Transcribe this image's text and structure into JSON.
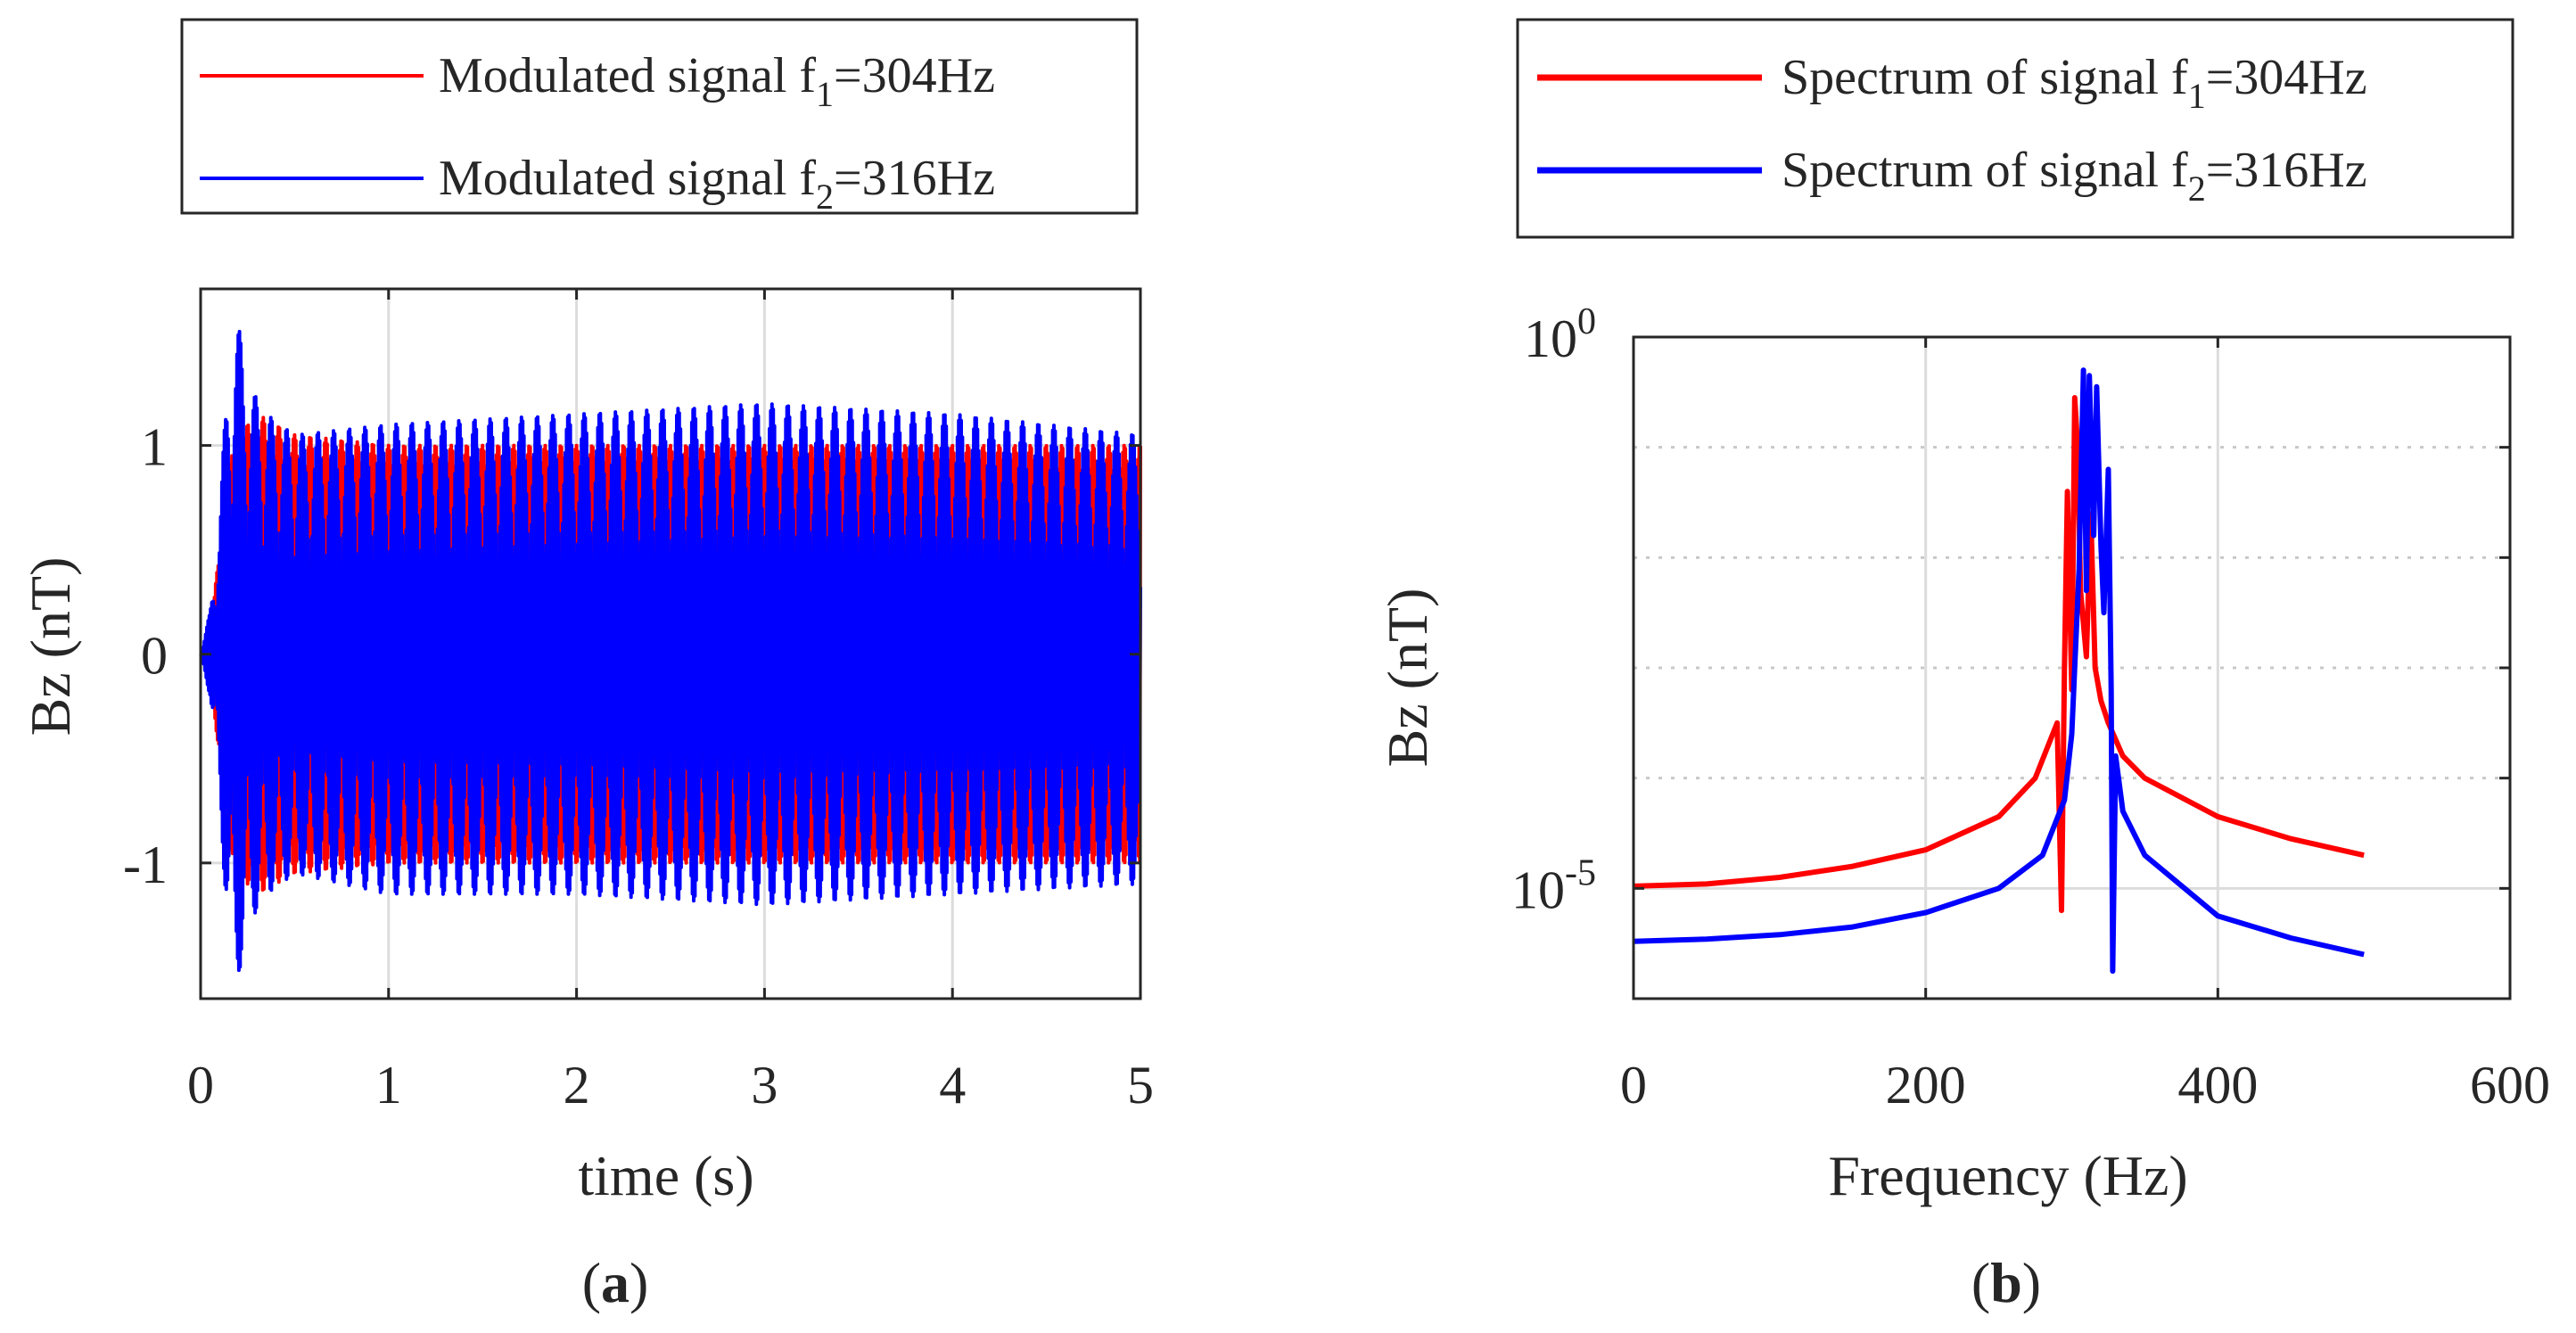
{
  "chart_data": [
    {
      "type": "line",
      "panel_label": "a",
      "xlabel": "time (s)",
      "ylabel": "Bz (nT)",
      "xlim": [
        0,
        5
      ],
      "ylim": [
        -1.65,
        1.75
      ],
      "xticks": [
        "0",
        "1",
        "2",
        "3",
        "4",
        "5"
      ],
      "yticks": [
        "-1",
        "0",
        "1"
      ],
      "grid": "major",
      "legend_position": "top, outside plot",
      "series": [
        {
          "name": "Modulated signal f1=304Hz",
          "name_parts": [
            "Modulated signal f",
            "1",
            "=304Hz"
          ],
          "color": "#ff0000",
          "x": [
            0.0,
            0.05,
            0.1,
            0.15,
            0.2,
            0.3,
            0.5,
            1.0,
            2.0,
            3.0,
            4.0,
            5.0
          ],
          "envelope_upper": [
            0.0,
            0.1,
            0.5,
            0.9,
            1.05,
            1.15,
            1.05,
            1.0,
            1.0,
            1.0,
            1.0,
            1.0
          ],
          "envelope_lower": [
            0.0,
            -0.1,
            -0.5,
            -0.9,
            -1.05,
            -1.15,
            -1.05,
            -1.0,
            -1.0,
            -1.0,
            -1.0,
            -1.0
          ],
          "beat_period_s": 0.0833
        },
        {
          "name": "Modulated signal f2=316Hz",
          "name_parts": [
            "Modulated signal f",
            "2",
            "=316Hz"
          ],
          "color": "#0000ff",
          "x": [
            0.0,
            0.05,
            0.1,
            0.15,
            0.18,
            0.25,
            0.35,
            0.5,
            1.0,
            2.0,
            3.0,
            4.0,
            5.0
          ],
          "envelope_upper": [
            0.0,
            0.2,
            0.7,
            1.4,
            1.7,
            1.3,
            1.15,
            1.05,
            1.1,
            1.15,
            1.2,
            1.15,
            1.05
          ],
          "envelope_lower": [
            0.0,
            -0.2,
            -0.7,
            -1.4,
            -1.65,
            -1.3,
            -1.15,
            -1.05,
            -1.15,
            -1.15,
            -1.2,
            -1.15,
            -1.1
          ],
          "beat_period_s": 0.0833
        }
      ]
    },
    {
      "type": "line",
      "panel_label": "b",
      "xlabel": "Frequency (Hz)",
      "ylabel": "Bz (nT)",
      "xlim": [
        0,
        600
      ],
      "ylim_log10": [
        -6,
        0
      ],
      "yscale": "log",
      "xticks": [
        "0",
        "200",
        "400",
        "600"
      ],
      "yticks": [
        {
          "base": "10",
          "exp": "0"
        },
        {
          "base": "10",
          "exp": "-5"
        }
      ],
      "grid": "major",
      "legend_position": "top, outside plot",
      "series": [
        {
          "name": "Spectrum of signal f1=304Hz",
          "name_parts": [
            "Spectrum of signal f",
            "1",
            "=304Hz"
          ],
          "color": "#ff0000",
          "x": [
            0,
            50,
            100,
            150,
            200,
            250,
            275,
            290,
            293,
            295,
            297,
            300,
            302,
            304,
            306,
            308,
            310,
            313,
            316,
            320,
            325,
            335,
            350,
            400,
            450,
            500
          ],
          "y_log10": [
            -4.98,
            -4.96,
            -4.9,
            -4.8,
            -4.65,
            -4.35,
            -4.0,
            -3.5,
            -5.2,
            -3.0,
            -1.4,
            -3.2,
            -0.55,
            -1.0,
            -2.3,
            -2.6,
            -2.9,
            -1.6,
            -3.0,
            -3.3,
            -3.5,
            -3.8,
            -4.0,
            -4.35,
            -4.55,
            -4.7
          ]
        },
        {
          "name": "Spectrum of signal f2=316Hz",
          "name_parts": [
            "Spectrum of signal f",
            "2",
            "=316Hz"
          ],
          "color": "#0000ff",
          "x": [
            0,
            50,
            100,
            150,
            200,
            250,
            280,
            295,
            300,
            305,
            308,
            310,
            312,
            315,
            317,
            320,
            322,
            325,
            327,
            328,
            330,
            335,
            350,
            400,
            450,
            500
          ],
          "y_log10": [
            -5.48,
            -5.46,
            -5.42,
            -5.35,
            -5.22,
            -5.0,
            -4.7,
            -4.2,
            -3.6,
            -2.1,
            -0.3,
            -2.3,
            -0.35,
            -1.8,
            -0.45,
            -1.9,
            -2.5,
            -1.2,
            -3.2,
            -5.75,
            -3.8,
            -4.3,
            -4.7,
            -5.25,
            -5.45,
            -5.6
          ]
        }
      ]
    }
  ]
}
